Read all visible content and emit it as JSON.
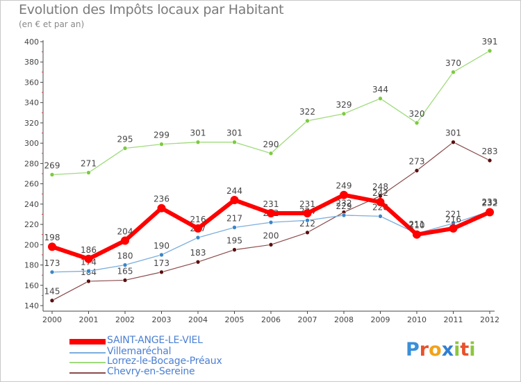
{
  "header": {
    "title": "Evolution des Impôts locaux par Habitant",
    "subtitle": "(en € et par an)"
  },
  "logo": {
    "letters": [
      "P",
      "r",
      "o",
      "x",
      "i",
      "t",
      "i"
    ],
    "colors": [
      "#3a8fd8",
      "#e8512a",
      "#f2a21a",
      "#2f7fd1",
      "#8cc63f",
      "#e8512a",
      "#8cc63f"
    ]
  },
  "chart_data": {
    "type": "line",
    "x": [
      "2000",
      "2001",
      "2002",
      "2003",
      "2004",
      "2005",
      "2006",
      "2007",
      "2008",
      "2009",
      "2010",
      "2011",
      "2012"
    ],
    "ylim": [
      140,
      400
    ],
    "yticks": [
      140,
      160,
      180,
      200,
      220,
      240,
      260,
      280,
      300,
      320,
      340,
      360,
      380,
      400
    ],
    "grid": false,
    "legend_position": "bottom-left",
    "series": [
      {
        "name": "Lorrez-le-Bocage-Préaux",
        "color": "#9fdb7c",
        "marker_color": "#7ccb3e",
        "width": 1.3,
        "values": [
          269,
          271,
          295,
          299,
          301,
          301,
          290,
          322,
          329,
          344,
          320,
          370,
          391
        ],
        "labels": [
          "269",
          "271",
          "295",
          "299",
          "301",
          "301",
          "290",
          "322",
          "329",
          "344",
          "320",
          "370",
          "391"
        ]
      },
      {
        "name": "Chevry-en-Sereine",
        "color": "#8a4a4a",
        "marker_color": "#5a1010",
        "width": 1.2,
        "values": [
          145,
          164,
          165,
          173,
          183,
          195,
          200,
          212,
          232,
          248,
          273,
          301,
          283
        ],
        "labels": [
          "145",
          "164",
          "165",
          "173",
          "183",
          "195",
          "200",
          "212",
          "232",
          "248",
          "273",
          "301",
          "283"
        ]
      },
      {
        "name": "Villemaréchal",
        "color": "#7aaedc",
        "marker_color": "#3d85c6",
        "width": 1.3,
        "values": [
          173,
          174,
          180,
          190,
          207,
          217,
          222,
          224,
          229,
          228,
          211,
          221,
          233
        ],
        "labels": [
          "173",
          "174",
          "180",
          "190",
          "207",
          "217",
          "222",
          "224",
          "229",
          "228",
          "211",
          "221",
          "233"
        ]
      },
      {
        "name": "SAINT-ANGE-LE-VIEL",
        "color": "#ff0000",
        "marker_color": "#ff0000",
        "width": 6,
        "values": [
          198,
          186,
          204,
          236,
          216,
          244,
          231,
          231,
          249,
          242,
          210,
          216,
          232
        ],
        "labels": [
          "198",
          "186",
          "204",
          "236",
          "216",
          "244",
          "231",
          "231",
          "249",
          "242",
          "210",
          "216",
          "232"
        ]
      }
    ]
  },
  "legend": {
    "items": [
      {
        "label": "SAINT-ANGE-LE-VIEL",
        "color": "#ff0000",
        "thickness": 8
      },
      {
        "label": "Villemaréchal",
        "color": "#7aaedc",
        "thickness": 2
      },
      {
        "label": "Lorrez-le-Bocage-Préaux",
        "color": "#9fdb7c",
        "thickness": 2
      },
      {
        "label": "Chevry-en-Sereine",
        "color": "#8a4a4a",
        "thickness": 2
      }
    ]
  }
}
